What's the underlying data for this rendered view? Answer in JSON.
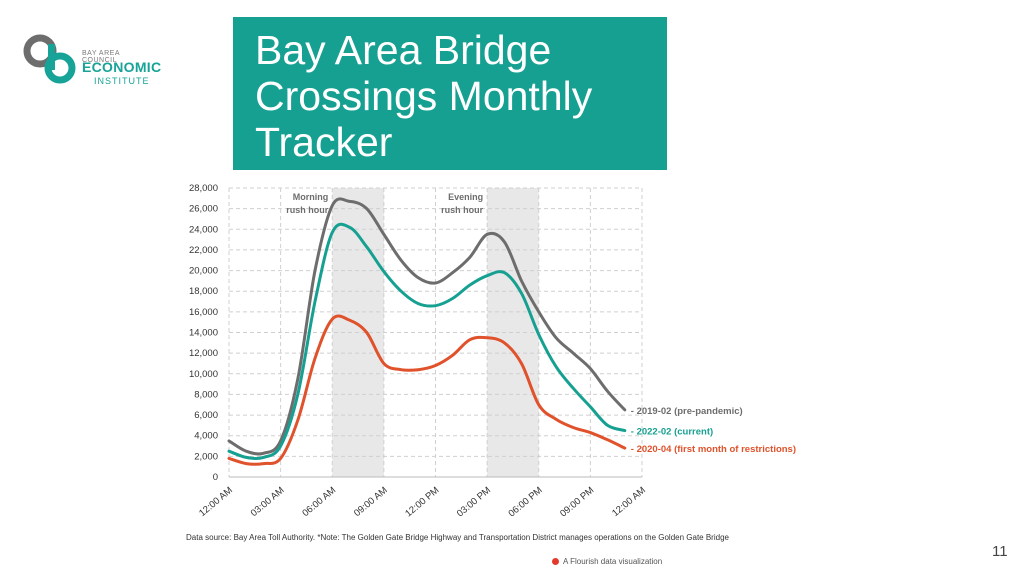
{
  "logo": {
    "small_text": "BAY AREA COUNCIL",
    "main_text": "ECONOMIC",
    "sub_text": "INSTITUTE"
  },
  "title_lines": [
    "Bay Area Bridge",
    "Crossings Monthly",
    "Tracker"
  ],
  "footnote": "Data source: Bay Area Toll Authority. *Note: The Golden Gate Bridge Highway and Transportation District manages operations on the Golden Gate Bridge",
  "flourish_label": "A Flourish data visualization",
  "page_number": "11",
  "colors": {
    "title_bg": "#16a092",
    "series_2019": "#6d6d6d",
    "series_2022": "#16a092",
    "series_2020": "#e0522b",
    "band_fill": "#e8e8e8",
    "grid": "#cfcfcf"
  },
  "chart_data": {
    "type": "line",
    "title": "",
    "xlabel": "",
    "ylabel": "",
    "ylim": [
      0,
      28000
    ],
    "xlim": [
      0,
      24
    ],
    "grid": true,
    "y_ticks": [
      0,
      2000,
      4000,
      6000,
      8000,
      10000,
      12000,
      14000,
      16000,
      18000,
      20000,
      22000,
      24000,
      26000,
      28000
    ],
    "y_tick_labels": [
      "0",
      "2,000",
      "4,000",
      "6,000",
      "8,000",
      "10,000",
      "12,000",
      "14,000",
      "16,000",
      "18,000",
      "20,000",
      "22,000",
      "24,000",
      "26,000",
      "28,000"
    ],
    "x_ticks": [
      0,
      3,
      6,
      9,
      12,
      15,
      18,
      21,
      24
    ],
    "x_tick_labels": [
      "12:00 AM",
      "03:00 AM",
      "06:00 AM",
      "09:00 AM",
      "12:00 PM",
      "03:00 PM",
      "06:00 PM",
      "09:00 PM",
      "12:00 AM"
    ],
    "annotations": [
      {
        "label_lines": [
          "Morning",
          "rush hour"
        ],
        "x_start": 6,
        "x_end": 9
      },
      {
        "label_lines": [
          "Evening",
          "rush hour"
        ],
        "x_start": 15,
        "x_end": 18
      }
    ],
    "x": [
      0,
      1,
      2,
      3,
      4,
      5,
      6,
      7,
      8,
      9,
      10,
      11,
      12,
      13,
      14,
      15,
      16,
      17,
      18,
      19,
      20,
      21,
      22,
      23,
      24
    ],
    "series": [
      {
        "name": "2019-02 (pre-pandemic)",
        "label": "- 2019-02 (pre-pandemic)",
        "values": [
          3500,
          2500,
          2300,
          3500,
          9500,
          20000,
          26300,
          26700,
          26000,
          23500,
          21000,
          19300,
          18800,
          19800,
          21300,
          23500,
          22800,
          19000,
          16000,
          13500,
          12000,
          10500,
          8300,
          6500,
          null
        ]
      },
      {
        "name": "2022-02 (current)",
        "label": "- 2022-02 (current)",
        "values": [
          2500,
          1900,
          1900,
          3000,
          8000,
          17000,
          23700,
          24200,
          22300,
          19900,
          18000,
          16800,
          16600,
          17300,
          18600,
          19500,
          19800,
          17800,
          13800,
          10700,
          8600,
          6800,
          5000,
          4500,
          null
        ]
      },
      {
        "name": "2020-04 (first month of restrictions)",
        "label": "- 2020-04 (first month of restrictions)",
        "values": [
          1800,
          1300,
          1300,
          1800,
          5500,
          11500,
          15300,
          15200,
          14000,
          11000,
          10400,
          10400,
          10800,
          11800,
          13300,
          13500,
          13000,
          11000,
          7000,
          5600,
          4800,
          4300,
          3600,
          2800,
          null
        ]
      }
    ]
  }
}
